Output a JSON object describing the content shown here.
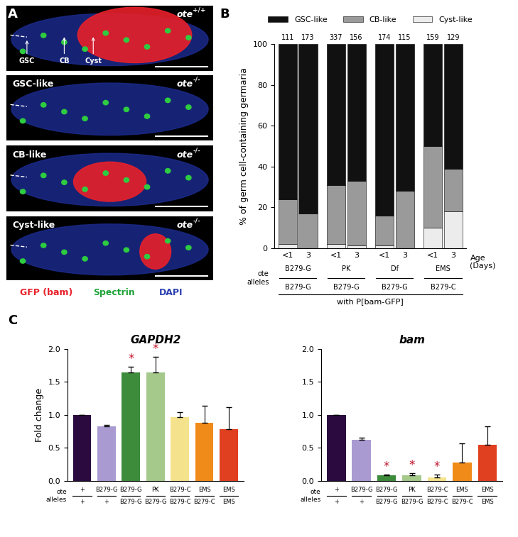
{
  "panel_a": {
    "panel": "A",
    "images": [
      {
        "genotype": {
          "gene": "ote",
          "allele": "+/+"
        },
        "annotations": [
          "GSC",
          "CB",
          "Cyst"
        ]
      },
      {
        "genotype": {
          "gene": "ote",
          "allele": "-/-"
        },
        "label": "GSC-like"
      },
      {
        "genotype": {
          "gene": "ote",
          "allele": "-/-"
        },
        "label": "CB-like"
      },
      {
        "genotype": {
          "gene": "ote",
          "allele": "-/-"
        },
        "label": "Cyst-like"
      }
    ],
    "legend": [
      {
        "name": "GFP (bam)",
        "color": "#e8202a"
      },
      {
        "name": "Spectrin",
        "color": "#1fa33a"
      },
      {
        "name": "DAPI",
        "color": "#2c3fb0"
      }
    ]
  },
  "chart_data": [
    {
      "panel": "B",
      "type": "bar",
      "stacked": true,
      "legend": "upper center",
      "ylabel": "% of germ cell-containing germaria",
      "xlabel": "Age\n(Days)",
      "ylim": [
        0,
        100
      ],
      "yticks": [
        0,
        20,
        40,
        60,
        80,
        100
      ],
      "categories": [
        "<1",
        "3",
        "<1",
        "3",
        "<1",
        "3",
        "<1",
        "3"
      ],
      "n": [
        111,
        173,
        337,
        156,
        174,
        115,
        159,
        129
      ],
      "groups": [
        {
          "top": "B279-G",
          "bottom": "B279-G"
        },
        {
          "top": "PK",
          "bottom": "B279-G"
        },
        {
          "top": "Df",
          "bottom": "B279-G"
        },
        {
          "top": "EMS",
          "bottom": "B279-C"
        }
      ],
      "genotype_label": "ote\nalleles",
      "footnote": "with P[bam-GFP]",
      "series": [
        {
          "name": "Cyst-like",
          "color": "#ececec",
          "values": [
            2,
            0,
            2,
            1.5,
            1.5,
            0,
            10,
            18
          ]
        },
        {
          "name": "CB-like",
          "color": "#9a9a9a",
          "values": [
            22,
            17,
            29,
            31.5,
            14.5,
            28,
            40,
            21
          ]
        },
        {
          "name": "GSC-like",
          "color": "#111111",
          "values": [
            76,
            83,
            69,
            67,
            84,
            72,
            50,
            61
          ]
        }
      ]
    },
    {
      "panel": "C",
      "type": "bar",
      "title": "GAPDH2",
      "ylabel": "Fold change",
      "ylim": [
        0,
        2
      ],
      "yticks": [
        {
          "value": 0,
          "label": "0.0"
        },
        {
          "value": 0.5,
          "label": "0.5"
        },
        {
          "value": 1,
          "label": "1.0"
        },
        {
          "value": 1.5,
          "label": "1.5"
        },
        {
          "value": 2,
          "label": "2.0"
        }
      ],
      "genotype_label": "ote\nalleles",
      "genotypes": [
        {
          "top": "+",
          "bottom": "+"
        },
        {
          "top": "B279-G",
          "bottom": "+"
        },
        {
          "top": "B279-G",
          "bottom": "B279-G"
        },
        {
          "top": "PK",
          "bottom": "B279-G"
        },
        {
          "top": "B279-C",
          "bottom": "B279-C"
        },
        {
          "top": "EMS",
          "bottom": "B279-C"
        },
        {
          "top": "EMS",
          "bottom": "EMS"
        }
      ],
      "colors": [
        "#2b0b3f",
        "#a99bd2",
        "#3c8c3c",
        "#a4c98b",
        "#f5e28c",
        "#f08b1a",
        "#e0401f"
      ],
      "values": [
        1.0,
        0.83,
        1.65,
        1.64,
        0.97,
        0.88,
        0.78
      ],
      "errors": [
        0,
        0.02,
        0.08,
        0.24,
        0.07,
        0.26,
        0.34
      ],
      "significant": [
        false,
        false,
        true,
        true,
        false,
        false,
        false
      ],
      "significance_mark": "*"
    },
    {
      "panel": "",
      "type": "bar",
      "title": "bam",
      "ylabel": "",
      "ylim": [
        0,
        2
      ],
      "yticks": [
        {
          "value": 0,
          "label": "0.0"
        },
        {
          "value": 0.5,
          "label": "0.5"
        },
        {
          "value": 1,
          "label": "1.0"
        },
        {
          "value": 1.5,
          "label": "1.5"
        },
        {
          "value": 2,
          "label": "2.0"
        }
      ],
      "genotype_label": "ote\nalleles",
      "genotypes": [
        {
          "top": "+",
          "bottom": "+"
        },
        {
          "top": "B279-G",
          "bottom": "+"
        },
        {
          "top": "B279-G",
          "bottom": "B279-G"
        },
        {
          "top": "PK",
          "bottom": "B279-G"
        },
        {
          "top": "B279-C",
          "bottom": "B279-C"
        },
        {
          "top": "EMS",
          "bottom": "B279-C"
        },
        {
          "top": "EMS",
          "bottom": "EMS"
        }
      ],
      "colors": [
        "#2b0b3f",
        "#a99bd2",
        "#3c8c3c",
        "#a4c98b",
        "#f5e28c",
        "#f08b1a",
        "#e0401f"
      ],
      "values": [
        1.0,
        0.62,
        0.08,
        0.08,
        0.05,
        0.27,
        0.55
      ],
      "errors": [
        0,
        0.03,
        0.01,
        0.03,
        0.04,
        0.3,
        0.28
      ],
      "significant": [
        false,
        false,
        true,
        true,
        true,
        false,
        false
      ],
      "significance_mark": "*"
    }
  ]
}
